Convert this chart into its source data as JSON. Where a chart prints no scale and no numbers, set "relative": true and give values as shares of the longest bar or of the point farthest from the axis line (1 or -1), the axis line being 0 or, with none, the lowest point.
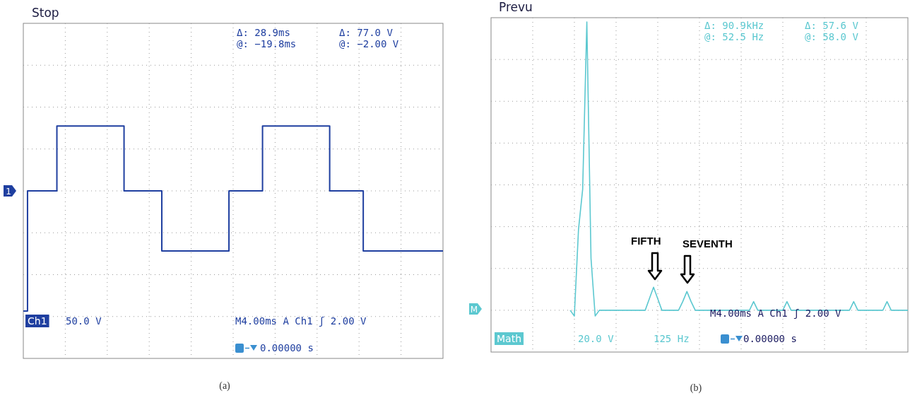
{
  "chart_data": [
    {
      "type": "step",
      "title": "Stop",
      "relative": true,
      "grid": true,
      "tick_labels": false,
      "legend": false,
      "categories": [
        null,
        null,
        null,
        null,
        null,
        null,
        null,
        null,
        null,
        null,
        null,
        null,
        null,
        null,
        null,
        null,
        null,
        null,
        null,
        null,
        null,
        null,
        null,
        null,
        null,
        null,
        null,
        null,
        null,
        null,
        null,
        null,
        null,
        null,
        null,
        null,
        null,
        null,
        null,
        null,
        null,
        null,
        null,
        null,
        null,
        null,
        null,
        null,
        null,
        null,
        null,
        null,
        null,
        null,
        null,
        null,
        null,
        null,
        null,
        null,
        null,
        null,
        null,
        null,
        null,
        null,
        null,
        null,
        null,
        null,
        null,
        null,
        null,
        null,
        null,
        null,
        null,
        null,
        null,
        null,
        null,
        null,
        null,
        null,
        null,
        null,
        null,
        null,
        null,
        null,
        null,
        null,
        null,
        null,
        null,
        null,
        null,
        null,
        null,
        null,
        null
      ],
      "series": [
        {
          "color": "#1f3fa0",
          "values": [
            -1,
            0,
            0,
            0,
            0,
            0,
            0,
            0,
            0.54,
            0.54,
            0.54,
            0.54,
            0.54,
            0.54,
            0.54,
            0.54,
            0.54,
            0.54,
            0.54,
            0.54,
            0.54,
            0.54,
            0.54,
            0.54,
            0,
            0,
            0,
            0,
            0,
            0,
            0,
            0,
            0,
            -0.5,
            -0.5,
            -0.5,
            -0.5,
            -0.5,
            -0.5,
            -0.5,
            -0.5,
            -0.5,
            -0.5,
            -0.5,
            -0.5,
            -0.5,
            -0.5,
            -0.5,
            -0.5,
            0,
            0,
            0,
            0,
            0,
            0,
            0,
            0,
            0.54,
            0.54,
            0.54,
            0.54,
            0.54,
            0.54,
            0.54,
            0.54,
            0.54,
            0.54,
            0.54,
            0.54,
            0.54,
            0.54,
            0.54,
            0.54,
            0,
            0,
            0,
            0,
            0,
            0,
            0,
            0,
            -0.5,
            -0.5,
            -0.5,
            -0.5,
            -0.5,
            -0.5,
            -0.5,
            -0.5,
            -0.5,
            -0.5,
            -0.5,
            -0.5,
            -0.5,
            -0.5,
            -0.5,
            -0.5,
            -0.5,
            -0.5,
            -0.5,
            -0.5
          ]
        }
      ],
      "annotations": [
        "Δ: 28.9ms",
        "@: −19.8ms",
        "Δ: 77.0 V",
        "@: −2.00 V",
        "Ch1",
        "50.0 V",
        "M4.00ms A Ch1 ʃ 2.00 V",
        "0.00000 s",
        "1",
        "(a)"
      ]
    },
    {
      "type": "line",
      "title": "Prevu",
      "relative": true,
      "grid": true,
      "tick_labels": false,
      "legend": false,
      "categories": [
        null,
        null,
        null,
        null,
        null,
        null,
        null,
        null,
        null,
        null,
        null,
        null,
        null,
        null,
        null,
        null,
        null,
        null,
        null,
        null,
        null,
        null,
        null,
        null,
        null,
        null,
        null,
        null,
        null,
        null,
        null,
        null,
        null,
        null,
        null,
        null,
        null,
        null,
        null,
        null,
        null,
        null,
        null,
        null,
        null,
        null,
        null,
        null,
        null,
        null,
        null,
        null,
        null,
        null,
        null,
        null,
        null,
        null,
        null,
        null,
        null,
        null,
        null,
        null,
        null,
        null,
        null,
        null,
        null,
        null,
        null,
        null,
        null,
        null,
        null,
        null,
        null,
        null,
        null,
        null,
        null,
        null
      ],
      "series": [
        {
          "color": "#5cc8d0",
          "values": [
            0,
            -0.02,
            0.28,
            0.42,
            1,
            0.18,
            -0.02,
            0,
            0,
            0,
            0,
            0,
            0,
            0,
            0,
            0,
            0,
            0,
            0,
            0.04,
            0.08,
            0.04,
            0,
            0,
            0,
            0,
            0,
            0.03,
            0.065,
            0.03,
            0,
            0,
            0,
            0,
            0,
            0,
            0,
            0,
            0,
            0,
            0,
            0,
            0,
            0,
            0.03,
            0,
            0,
            0,
            0,
            0,
            0,
            0,
            0.03,
            0,
            0,
            0,
            0,
            0,
            0,
            0,
            0,
            0,
            0,
            0,
            0,
            0,
            0,
            0,
            0.03,
            0,
            0,
            0,
            0,
            0,
            0,
            0,
            0.03,
            0,
            0,
            0,
            0,
            0
          ]
        }
      ],
      "annotations": [
        "Δ: 90.9kHz",
        "@: 52.5 Hz",
        "Δ: 57.6 V",
        "@: 58.0 V",
        "FIFTH",
        "SEVENTH",
        "M4.00ms A Ch1 ʃ 2.00 V",
        "Math",
        "20.0 V",
        "125 Hz",
        "0.00000 s",
        "M",
        "(b)"
      ]
    }
  ]
}
